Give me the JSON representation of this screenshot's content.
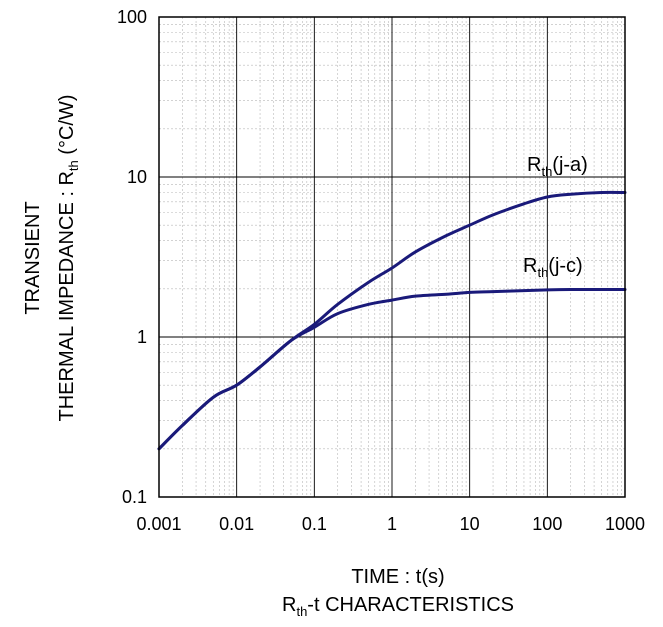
{
  "chart_data": {
    "type": "line",
    "title": "",
    "caption": {
      "main": "R",
      "sub": "th",
      "rest": "-t CHARACTERISTICS"
    },
    "xlabel": "TIME : t(s)",
    "ylabel": {
      "line1": "TRANSIENT",
      "line2_main": "THERMAL IMPEDANCE : R",
      "line2_sub": "th",
      "line2_rest": " (°C/W)"
    },
    "x_scale": "log",
    "y_scale": "log",
    "xlim": [
      0.001,
      1000
    ],
    "ylim": [
      0.1,
      100
    ],
    "x_ticks": [
      "0.001",
      "0.01",
      "0.1",
      "1",
      "10",
      "100",
      "1000"
    ],
    "y_ticks": [
      "0.1",
      "1",
      "10",
      "100"
    ],
    "grid": true,
    "series": [
      {
        "name_main": "R",
        "name_sub": "th",
        "name_rest": "(j-a)",
        "color": "#1a1a7a",
        "x": [
          0.001,
          0.002,
          0.005,
          0.01,
          0.02,
          0.05,
          0.1,
          0.2,
          0.5,
          1,
          2,
          5,
          10,
          20,
          50,
          100,
          200,
          500,
          1000
        ],
        "y": [
          0.2,
          0.28,
          0.42,
          0.5,
          0.65,
          0.95,
          1.2,
          1.6,
          2.2,
          2.7,
          3.4,
          4.3,
          5.0,
          5.8,
          6.8,
          7.5,
          7.8,
          8.0,
          8.0
        ]
      },
      {
        "name_main": "R",
        "name_sub": "th",
        "name_rest": "(j-c)",
        "color": "#1a1a7a",
        "x": [
          0.001,
          0.002,
          0.005,
          0.01,
          0.02,
          0.05,
          0.1,
          0.2,
          0.5,
          1,
          2,
          5,
          10,
          20,
          50,
          100,
          200,
          500,
          1000
        ],
        "y": [
          0.2,
          0.28,
          0.42,
          0.5,
          0.65,
          0.95,
          1.15,
          1.4,
          1.6,
          1.7,
          1.8,
          1.85,
          1.9,
          1.92,
          1.95,
          1.97,
          1.98,
          1.98,
          1.98
        ]
      }
    ]
  }
}
